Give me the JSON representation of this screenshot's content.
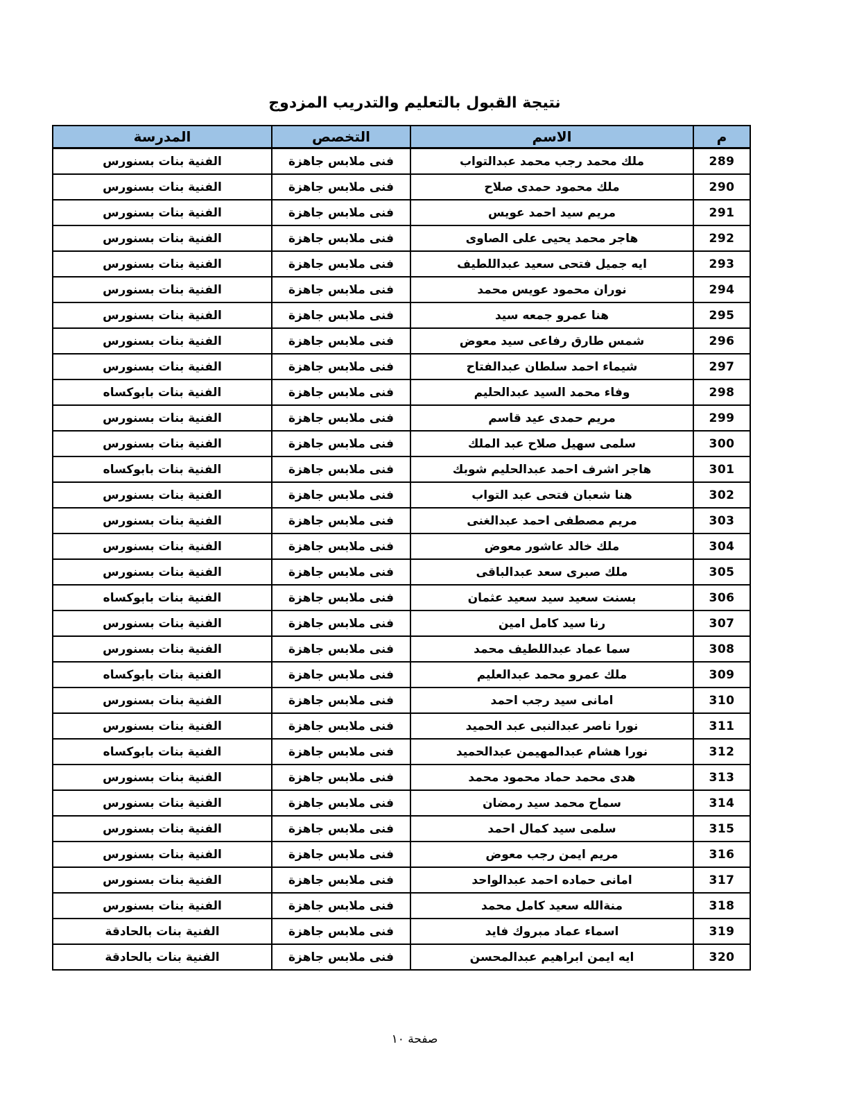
{
  "page": {
    "title": "نتيجة القبول بالتعليم والتدريب المزدوج",
    "footer": "صفحة ١٠"
  },
  "colors": {
    "header_bg": "#9DC3E6",
    "border": "#000000",
    "text": "#000000"
  },
  "table": {
    "headers": {
      "num": "م",
      "name": "الاسم",
      "spec": "التخصص",
      "school": "المدرسة"
    },
    "rows": [
      {
        "num": "289",
        "name": "ملك محمد رجب محمد عبدالتواب",
        "spec": "فنى ملابس جاهزة",
        "school": "الفنية بنات بسنورس"
      },
      {
        "num": "290",
        "name": "ملك محمود حمدى صلاح",
        "spec": "فنى ملابس جاهزة",
        "school": "الفنية بنات بسنورس"
      },
      {
        "num": "291",
        "name": "مريم سيد احمد عويس",
        "spec": "فنى ملابس جاهزة",
        "school": "الفنية بنات بسنورس"
      },
      {
        "num": "292",
        "name": "هاجر محمد يحيى على الصاوى",
        "spec": "فنى ملابس جاهزة",
        "school": "الفنية بنات بسنورس"
      },
      {
        "num": "293",
        "name": "ايه جميل فتحى سعيد عبداللطيف",
        "spec": "فنى ملابس جاهزة",
        "school": "الفنية بنات بسنورس"
      },
      {
        "num": "294",
        "name": "نوران محمود عويس محمد",
        "spec": "فنى ملابس جاهزة",
        "school": "الفنية بنات بسنورس"
      },
      {
        "num": "295",
        "name": "هنا عمرو جمعه سيد",
        "spec": "فنى ملابس جاهزة",
        "school": "الفنية بنات بسنورس"
      },
      {
        "num": "296",
        "name": "شمس طارق رفاعى سيد معوض",
        "spec": "فنى ملابس جاهزة",
        "school": "الفنية بنات بسنورس"
      },
      {
        "num": "297",
        "name": "شيماء احمد سلطان عبدالفتاح",
        "spec": "فنى ملابس جاهزة",
        "school": "الفنية بنات بسنورس"
      },
      {
        "num": "298",
        "name": "وفاء محمد السيد عبدالحليم",
        "spec": "فنى ملابس جاهزة",
        "school": "الفنية بنات بابوكساه"
      },
      {
        "num": "299",
        "name": "مريم حمدى عيد قاسم",
        "spec": "فنى ملابس جاهزة",
        "school": "الفنية بنات بسنورس"
      },
      {
        "num": "300",
        "name": "سلمى سهيل صلاح عبد الملك",
        "spec": "فنى ملابس جاهزة",
        "school": "الفنية بنات بسنورس"
      },
      {
        "num": "301",
        "name": "هاجر اشرف احمد عبدالحليم شوبك",
        "spec": "فنى ملابس جاهزة",
        "school": "الفنية بنات بابوكساه"
      },
      {
        "num": "302",
        "name": "هنا شعبان فتحى عبد التواب",
        "spec": "فنى ملابس جاهزة",
        "school": "الفنية بنات بسنورس"
      },
      {
        "num": "303",
        "name": "مريم مصطفى احمد عبدالغنى",
        "spec": "فنى ملابس جاهزة",
        "school": "الفنية بنات بسنورس"
      },
      {
        "num": "304",
        "name": "ملك خالد عاشور معوض",
        "spec": "فنى ملابس جاهزة",
        "school": "الفنية بنات بسنورس"
      },
      {
        "num": "305",
        "name": "ملك صبرى سعد عبدالباقى",
        "spec": "فنى ملابس جاهزة",
        "school": "الفنية بنات بسنورس"
      },
      {
        "num": "306",
        "name": "بسنت سعيد سيد سعيد عثمان",
        "spec": "فنى ملابس جاهزة",
        "school": "الفنية بنات بابوكساه"
      },
      {
        "num": "307",
        "name": "رنا سيد كامل امين",
        "spec": "فنى ملابس جاهزة",
        "school": "الفنية بنات بسنورس"
      },
      {
        "num": "308",
        "name": "سما عماد عبداللطيف محمد",
        "spec": "فنى ملابس جاهزة",
        "school": "الفنية بنات بسنورس"
      },
      {
        "num": "309",
        "name": "ملك عمرو محمد عبدالعليم",
        "spec": "فنى ملابس جاهزة",
        "school": "الفنية بنات بابوكساه"
      },
      {
        "num": "310",
        "name": "امانى سيد رجب احمد",
        "spec": "فنى ملابس جاهزة",
        "school": "الفنية بنات بسنورس"
      },
      {
        "num": "311",
        "name": "نورا ناصر عبدالنبى عبد الحميد",
        "spec": "فنى ملابس جاهزة",
        "school": "الفنية بنات بسنورس"
      },
      {
        "num": "312",
        "name": "نورا هشام عبدالمهيمن عبدالحميد",
        "spec": "فنى ملابس جاهزة",
        "school": "الفنية بنات بابوكساه"
      },
      {
        "num": "313",
        "name": "هدى محمد حماد محمود محمد",
        "spec": "فنى ملابس جاهزة",
        "school": "الفنية بنات بسنورس"
      },
      {
        "num": "314",
        "name": "سماح محمد سيد رمضان",
        "spec": "فنى ملابس جاهزة",
        "school": "الفنية بنات بسنورس"
      },
      {
        "num": "315",
        "name": "سلمى سيد كمال احمد",
        "spec": "فنى ملابس جاهزة",
        "school": "الفنية بنات بسنورس"
      },
      {
        "num": "316",
        "name": "مريم ايمن رجب معوض",
        "spec": "فنى ملابس جاهزة",
        "school": "الفنية بنات بسنورس"
      },
      {
        "num": "317",
        "name": "امانى حماده احمد عبدالواحد",
        "spec": "فنى ملابس جاهزة",
        "school": "الفنية بنات بسنورس"
      },
      {
        "num": "318",
        "name": "منةالله سعيد كامل محمد",
        "spec": "فنى ملابس جاهزة",
        "school": "الفنية بنات بسنورس"
      },
      {
        "num": "319",
        "name": "اسماء عماد مبروك فايد",
        "spec": "فنى ملابس جاهزة",
        "school": "الفنية بنات بالحادقة"
      },
      {
        "num": "320",
        "name": "ايه ايمن ابراهيم عبدالمحسن",
        "spec": "فنى ملابس جاهزة",
        "school": "الفنية بنات بالحادقة"
      }
    ]
  }
}
